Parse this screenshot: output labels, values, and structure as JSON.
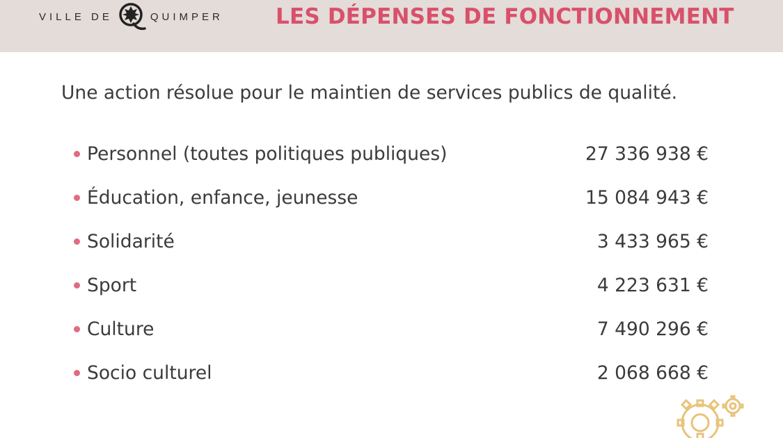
{
  "header": {
    "logo_text_left": "VILLE DE",
    "logo_text_right": "QUIMPER",
    "title": "LES DÉPENSES DE FONCTIONNEMENT"
  },
  "main": {
    "subtitle": "Une action résolue pour le maintien de services publics de qualité.",
    "items": [
      {
        "label": "Personnel (toutes politiques publiques)",
        "amount": "27 336 938 €"
      },
      {
        "label": "Éducation, enfance, jeunesse",
        "amount": "15 084 943 €"
      },
      {
        "label": "Solidarité",
        "amount": "3 433 965 €"
      },
      {
        "label": "Sport",
        "amount": "4 223 631 €"
      },
      {
        "label": "Culture",
        "amount": "7 490 296 €"
      },
      {
        "label": "Socio culturel",
        "amount": "2 068 668 €"
      }
    ]
  },
  "colors": {
    "accent": "#d9506b",
    "header_bg": "#e3dcd9",
    "bullet": "#e06b82",
    "gear": "#e8c37a"
  },
  "icons": [
    "quimper-emblem-icon",
    "gears-icon"
  ]
}
